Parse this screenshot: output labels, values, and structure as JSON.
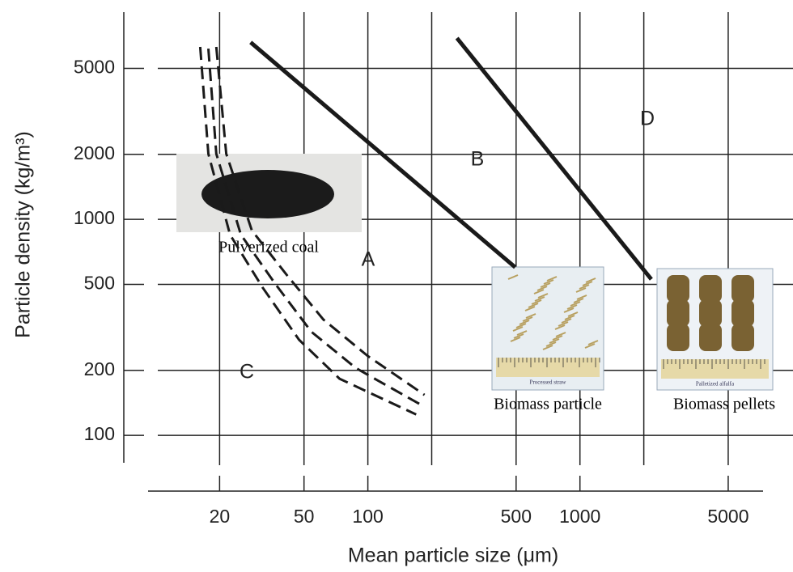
{
  "chart_data": {
    "type": "line",
    "x_label": "Mean particle size (μm)",
    "y_label": "Particle density (kg/m³)",
    "log_x": true,
    "log_y": true,
    "grid": true,
    "color": "#1a1a1a",
    "xlim": [
      9.2,
      7300
    ],
    "ylim": [
      76,
      9100
    ],
    "xticks": [
      20,
      50,
      100,
      500,
      1000,
      5000
    ],
    "yticks": [
      100,
      200,
      500,
      1000,
      2000,
      5000
    ],
    "xgrid": [
      20,
      50,
      100,
      200,
      500,
      1000,
      2000,
      5000
    ],
    "ygrid": [
      100,
      200,
      500,
      1000,
      2000,
      5000
    ],
    "series": [
      {
        "dash": false,
        "x": [
          28,
          495
        ],
        "values": [
          6600,
          600
        ]
      },
      {
        "dash": false,
        "x": [
          263,
          2170
        ],
        "values": [
          6900,
          528
        ]
      },
      {
        "dash": true,
        "x": [
          16.2,
          17.7,
          22.4,
          31.9,
          47.4,
          73.5,
          169
        ],
        "values": [
          6280,
          2010,
          849,
          484,
          277,
          183,
          125
        ]
      },
      {
        "dash": true,
        "x": [
          17.7,
          19.3,
          25.2,
          36.4,
          54.1,
          87.7,
          177
        ],
        "values": [
          6170,
          2010,
          849,
          506,
          302,
          205,
          139
        ]
      },
      {
        "dash": true,
        "x": [
          19.3,
          21.5,
          28.4,
          41.5,
          61.7,
          100,
          185
        ],
        "values": [
          6280,
          2010,
          887,
          552,
          344,
          233,
          154
        ]
      }
    ],
    "annotations": [
      "A",
      "B",
      "C",
      "D"
    ],
    "images": [
      {
        "caption": "Pulverized coal"
      },
      {
        "caption": "Biomass particle",
        "label": "Processed straw"
      },
      {
        "caption": "Biomass pellets",
        "label": "Palletized alfalfa"
      }
    ]
  }
}
